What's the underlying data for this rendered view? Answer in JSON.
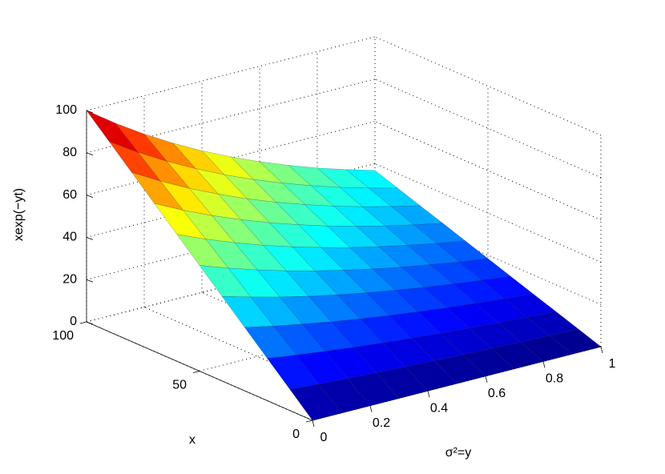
{
  "chart_data": {
    "type": "surface",
    "xlabel": "x",
    "ylabel": "σ²=y",
    "zlabel": "xexp(−yt)",
    "x": [
      0,
      10,
      20,
      30,
      40,
      50,
      60,
      70,
      80,
      90,
      100
    ],
    "y": [
      0,
      0.1,
      0.2,
      0.3,
      0.4,
      0.5,
      0.6,
      0.7,
      0.8,
      0.9,
      1
    ],
    "z": [
      [
        0,
        0,
        0,
        0,
        0,
        0,
        0,
        0,
        0,
        0,
        0
      ],
      [
        10,
        9.0,
        8.2,
        7.4,
        6.7,
        6.1,
        5.5,
        5.0,
        4.5,
        4.1,
        3.7
      ],
      [
        20,
        18.1,
        16.4,
        14.8,
        13.4,
        12.1,
        11.0,
        9.9,
        9.0,
        8.1,
        7.4
      ],
      [
        30,
        27.1,
        24.6,
        22.2,
        20.1,
        18.2,
        16.5,
        14.9,
        13.5,
        12.2,
        11.0
      ],
      [
        40,
        36.2,
        32.7,
        29.6,
        26.8,
        24.3,
        22.0,
        19.9,
        18.0,
        16.3,
        14.7
      ],
      [
        50,
        45.2,
        40.9,
        37.0,
        33.5,
        30.3,
        27.4,
        24.8,
        22.5,
        20.3,
        18.4
      ],
      [
        60,
        54.3,
        49.1,
        44.4,
        40.2,
        36.4,
        32.9,
        29.8,
        27.0,
        24.4,
        22.1
      ],
      [
        70,
        63.3,
        57.3,
        51.9,
        46.9,
        42.5,
        38.4,
        34.8,
        31.5,
        28.5,
        25.8
      ],
      [
        80,
        72.4,
        65.5,
        59.3,
        53.6,
        48.5,
        43.9,
        39.7,
        35.9,
        32.5,
        29.4
      ],
      [
        90,
        81.4,
        73.7,
        66.7,
        60.3,
        54.6,
        49.4,
        44.7,
        40.4,
        36.6,
        33.1
      ],
      [
        100,
        90.5,
        81.9,
        74.1,
        67.0,
        60.7,
        54.9,
        49.7,
        44.9,
        40.7,
        36.8
      ]
    ],
    "colormap": "jet",
    "xlim": [
      0,
      100
    ],
    "xticks": [
      0,
      50,
      100
    ],
    "ylim": [
      0,
      1
    ],
    "yticks": [
      0,
      0.2,
      0.4,
      0.6,
      0.8,
      1
    ],
    "zlim": [
      0,
      100
    ],
    "zticks": [
      0,
      20,
      40,
      60,
      80,
      100
    ],
    "grid": true
  }
}
